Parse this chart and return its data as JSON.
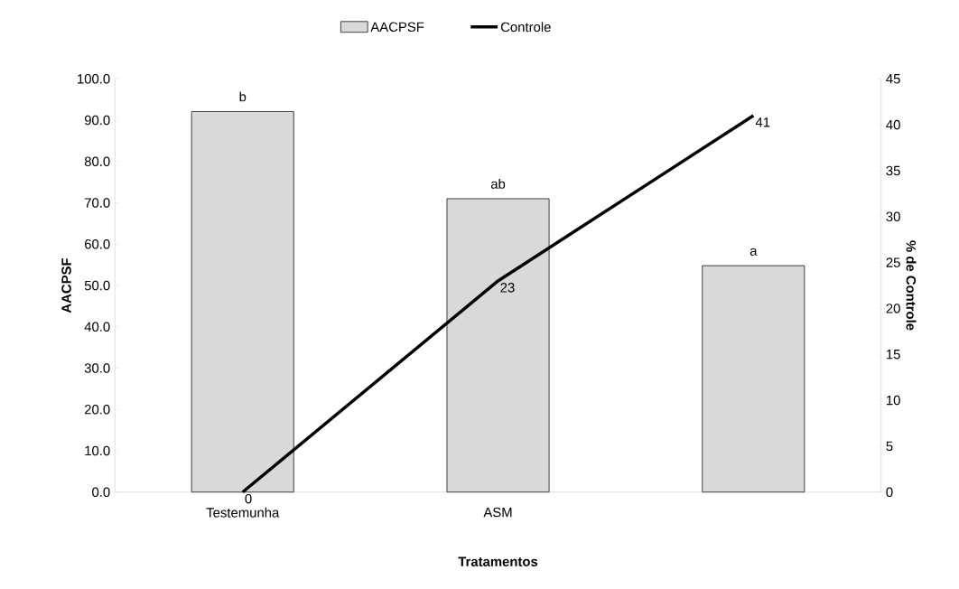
{
  "chart_data": {
    "type": "bar",
    "xlabel": "Tratamentos",
    "ylabel": "AACPSF",
    "y2label": "% de Controle",
    "categories": [
      "Testemunha",
      "ASM",
      null
    ],
    "series": [
      {
        "name": "AACPSF",
        "color": "#d9d9d9",
        "values": [
          92.1,
          71.0,
          54.8
        ]
      },
      {
        "name": "Controle",
        "type": "line",
        "axis": "y2",
        "color": "#000000",
        "values": [
          0,
          23,
          41
        ],
        "value_labels": [
          "0",
          "23",
          "41"
        ]
      }
    ],
    "ylim": [
      0,
      100
    ],
    "yticks": [
      {
        "value": 0,
        "label": "0.0"
      },
      {
        "value": 10,
        "label": "10.0"
      },
      {
        "value": 20,
        "label": "20.0"
      },
      {
        "value": 30,
        "label": "30.0"
      },
      {
        "value": 40,
        "label": "40.0"
      },
      {
        "value": 50,
        "label": "50.0"
      },
      {
        "value": 60,
        "label": "60.0"
      },
      {
        "value": 70,
        "label": "70.0"
      },
      {
        "value": 80,
        "label": "80.0"
      },
      {
        "value": 90,
        "label": "90.0"
      },
      {
        "value": 100,
        "label": "100.0"
      }
    ],
    "y2lim": [
      0,
      45
    ],
    "y2ticks": [
      0,
      5,
      10,
      15,
      20,
      25,
      30,
      35,
      40,
      45
    ],
    "annotations": [
      {
        "text": "b",
        "x": "Testemunha",
        "y": 92.1
      },
      {
        "text": "ab",
        "x": "ASM",
        "y": 71.0
      },
      {
        "text": "a",
        "y": 54.8
      }
    ],
    "legend": "top",
    "grid": false,
    "marker": "none",
    "line_style": "solid"
  }
}
